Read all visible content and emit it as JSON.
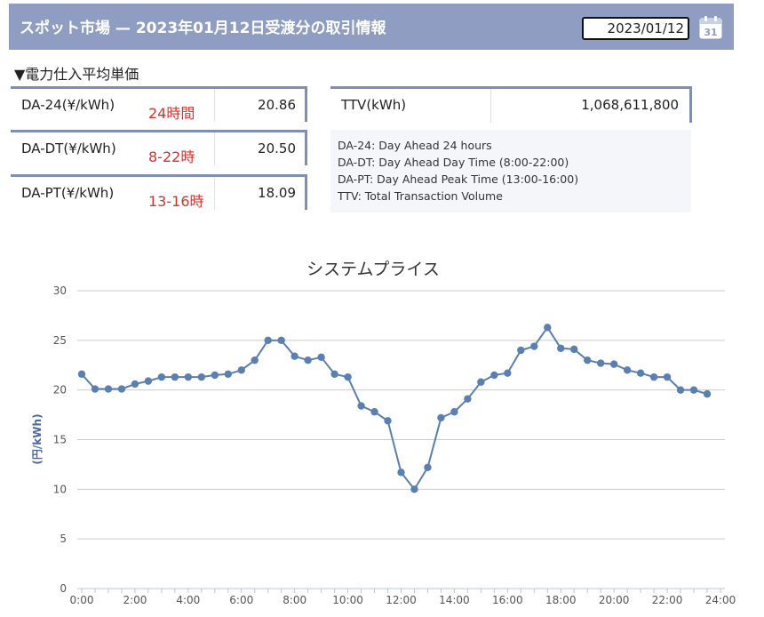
{
  "header": {
    "title": "スポット市場 — 2023年01月12日受渡分の取引情報",
    "date_value": "2023/01/12",
    "calendar_icon_text": "31"
  },
  "section_title": "▼電力仕入平均単価",
  "prices": [
    {
      "label": "DA-24(¥/kWh)",
      "hours": "24時間",
      "value": "20.86"
    },
    {
      "label": "DA-DT(¥/kWh)",
      "hours": "8-22時",
      "value": "20.50"
    },
    {
      "label": "DA-PT(¥/kWh)",
      "hours": "13-16時",
      "value": "18.09"
    }
  ],
  "ttv": {
    "label": "TTV(kWh)",
    "value": "1,068,611,800"
  },
  "notes": [
    "DA-24: Day Ahead 24 hours",
    "DA-DT: Day Ahead Day Time (8:00-22:00)",
    "DA-PT: Day Ahead Peak Time (13:00-16:00)",
    "TTV: Total Transaction Volume"
  ],
  "colors": {
    "header_bg": "#8e9dc1",
    "accent_red": "#d9302c",
    "series": "#5b7fae"
  },
  "chart_data": {
    "type": "line",
    "title": "システムプライス",
    "xlabel": "",
    "ylabel": "(円/kWh)",
    "ylim": [
      0,
      30
    ],
    "yticks": [
      0,
      5,
      10,
      15,
      20,
      25,
      30
    ],
    "xlim": [
      0,
      24
    ],
    "xticks": [
      "0:00",
      "2:00",
      "4:00",
      "6:00",
      "8:00",
      "10:00",
      "12:00",
      "14:00",
      "16:00",
      "18:00",
      "20:00",
      "22:00",
      "24:00"
    ],
    "grid": true,
    "legend": false,
    "x": [
      0.0,
      0.5,
      1.0,
      1.5,
      2.0,
      2.5,
      3.0,
      3.5,
      4.0,
      4.5,
      5.0,
      5.5,
      6.0,
      6.5,
      7.0,
      7.5,
      8.0,
      8.5,
      9.0,
      9.5,
      10.0,
      10.5,
      11.0,
      11.5,
      12.0,
      12.5,
      13.0,
      13.5,
      14.0,
      14.5,
      15.0,
      15.5,
      16.0,
      16.5,
      17.0,
      17.5,
      18.0,
      18.5,
      19.0,
      19.5,
      20.0,
      20.5,
      21.0,
      21.5,
      22.0,
      22.5,
      23.0,
      23.5
    ],
    "values": [
      21.6,
      20.1,
      20.1,
      20.1,
      20.6,
      20.9,
      21.3,
      21.3,
      21.3,
      21.3,
      21.5,
      21.6,
      22.0,
      23.0,
      25.0,
      25.0,
      23.4,
      23.0,
      23.3,
      21.6,
      21.3,
      18.4,
      17.8,
      16.9,
      11.7,
      10.0,
      12.2,
      17.2,
      17.8,
      19.1,
      20.8,
      21.5,
      21.7,
      24.0,
      24.4,
      26.3,
      24.2,
      24.1,
      23.0,
      22.7,
      22.6,
      22.0,
      21.7,
      21.3,
      21.3,
      20.0,
      20.0,
      19.6
    ]
  }
}
